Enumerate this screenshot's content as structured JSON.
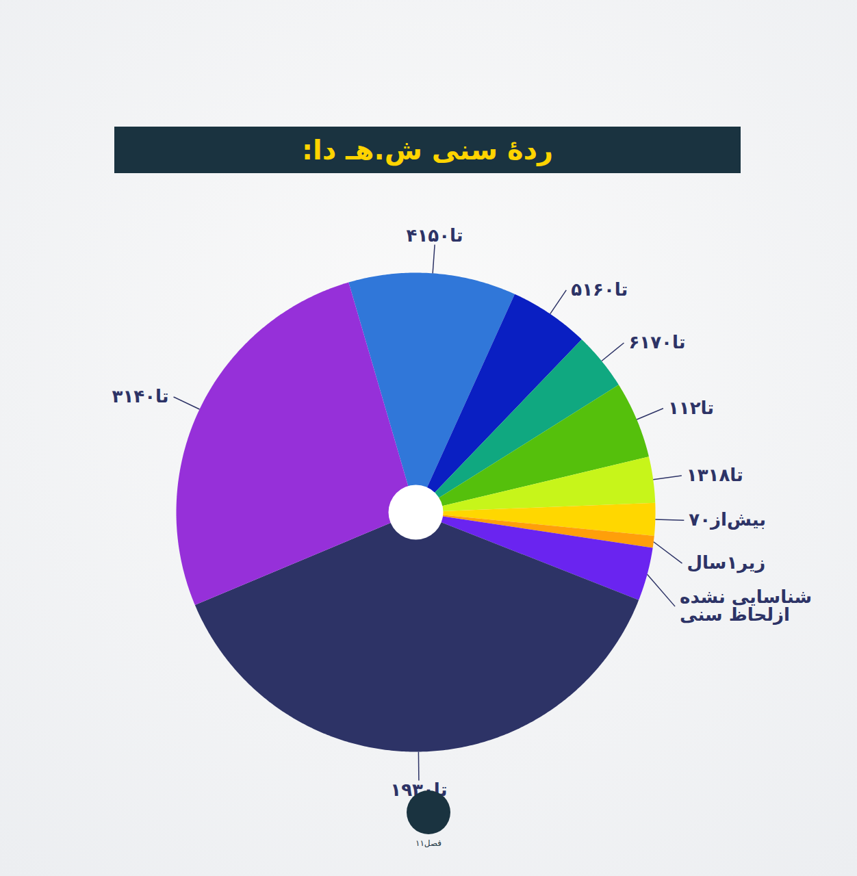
{
  "chart_data": {
    "type": "pie",
    "title": "ردهٔ سنی ش.هـ دا:",
    "categories": [
      "۴۱تا۵۰",
      "۵۱تا۶۰",
      "۶۱تا۷۰",
      "۱تا۱۲",
      "۱۳تا۱۸",
      "بیش‌از۷۰",
      "زیر۱سال",
      "شناسایی نشده ازلحاظ سنی",
      "۱۹تا۳۰",
      "۳۱تا۴۰"
    ],
    "values": [
      11.3,
      5.4,
      3.9,
      5.2,
      3.1,
      2.2,
      0.8,
      3.6,
      37.7,
      26.8
    ],
    "colors": [
      "#3077d9",
      "#0a1fc2",
      "#10a880",
      "#55c00c",
      "#c7f51a",
      "#ffd700",
      "#ff9f0a",
      "#6a24f0",
      "#2d3366",
      "#9630d9"
    ],
    "annotations": [
      "فصل۱۱"
    ]
  }
}
